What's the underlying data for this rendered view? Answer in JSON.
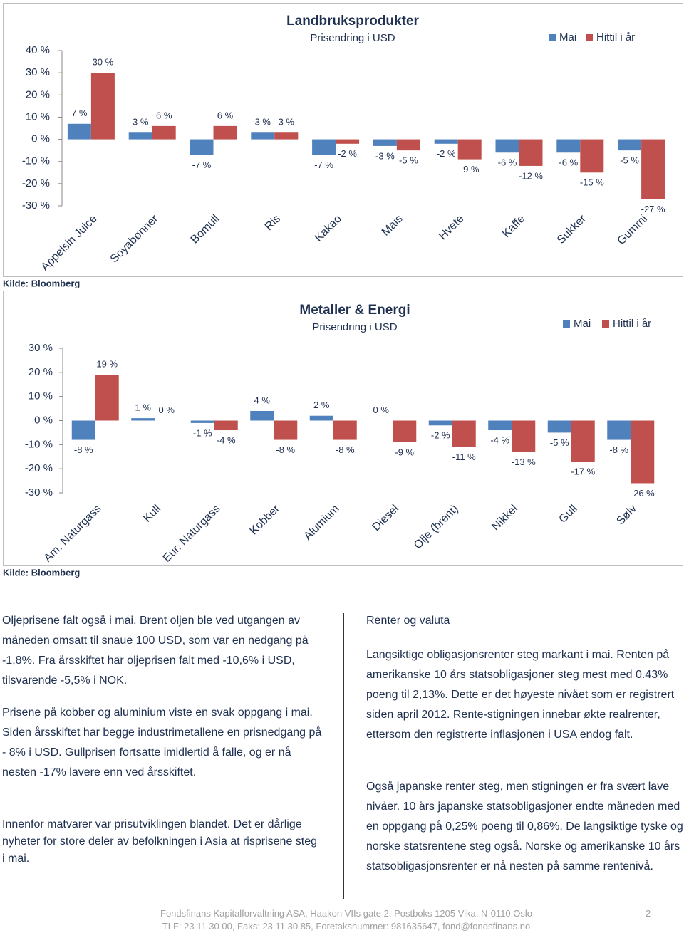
{
  "chart_data": [
    {
      "type": "bar",
      "title": "Landbruksprodukter",
      "subtitle": "Prisendring i USD",
      "categories": [
        "Appelsin Juice",
        "Soyabønner",
        "Bomull",
        "Ris",
        "Kakao",
        "Mais",
        "Hvete",
        "Kaffe",
        "Sukker",
        "Gummi"
      ],
      "series": [
        {
          "name": "Mai",
          "color": "#4f81bd",
          "values": [
            7,
            3,
            -7,
            3,
            -7,
            -3,
            -2,
            -6,
            -6,
            -5
          ],
          "value_labels": [
            "7 %",
            "3 %",
            "-7 %",
            "3 %",
            "-7 %",
            "-3 %",
            "-2 %",
            "-6 %",
            "-6 %",
            "-5 %"
          ]
        },
        {
          "name": "Hittil i år",
          "color": "#c0504d",
          "values": [
            30,
            6,
            6,
            3,
            -2,
            -5,
            -9,
            -12,
            -15,
            -27
          ],
          "value_labels": [
            "30 %",
            "6 %",
            "6 %",
            "3 %",
            "-2 %",
            "-5 %",
            "-9 %",
            "-12 %",
            "-15 %",
            "-27 %"
          ]
        }
      ],
      "ylim": [
        -30,
        40
      ],
      "yticks": [
        {
          "value": -30,
          "label": "-30 %"
        },
        {
          "value": -20,
          "label": "-20 %"
        },
        {
          "value": -10,
          "label": "-10 %"
        },
        {
          "value": 0,
          "label": "0 %"
        },
        {
          "value": 10,
          "label": "10 %"
        },
        {
          "value": 20,
          "label": "20 %"
        },
        {
          "value": 30,
          "label": "30 %"
        },
        {
          "value": 40,
          "label": "40 %"
        }
      ],
      "grid": false,
      "legend": "top-right",
      "source": "Kilde: Bloomberg"
    },
    {
      "type": "bar",
      "title": "Metaller & Energi",
      "subtitle": "Prisendring i USD",
      "categories": [
        "Am. Naturgass",
        "Kull",
        "Eur. Naturgass",
        "Kobber",
        "Alumium",
        "Diesel",
        "Olje (brent)",
        "Nikkel",
        "Gull",
        "Sølv"
      ],
      "series": [
        {
          "name": "Mai",
          "color": "#4f81bd",
          "values": [
            -8,
            1,
            -1,
            4,
            2,
            0,
            -2,
            -4,
            -5,
            -8
          ],
          "value_labels": [
            "-8 %",
            "1 %",
            "-1 %",
            "4 %",
            "2 %",
            "0 %",
            "-2 %",
            "-4 %",
            "-5 %",
            "-8 %"
          ]
        },
        {
          "name": "Hittil i år",
          "color": "#c0504d",
          "values": [
            19,
            0,
            -4,
            -8,
            -8,
            -9,
            -11,
            -13,
            -17,
            -26
          ],
          "value_labels": [
            "19 %",
            "0 %",
            "-4 %",
            "-8 %",
            "-8 %",
            "-9 %",
            "-11 %",
            "-13 %",
            "-17 %",
            "-26 %"
          ]
        }
      ],
      "ylim": [
        -30,
        30
      ],
      "yticks": [
        {
          "value": -30,
          "label": "-30 %"
        },
        {
          "value": -20,
          "label": "-20 %"
        },
        {
          "value": -10,
          "label": "-10 %"
        },
        {
          "value": 0,
          "label": "0 %"
        },
        {
          "value": 10,
          "label": "10 %"
        },
        {
          "value": 20,
          "label": "20 %"
        },
        {
          "value": 30,
          "label": "30 %"
        }
      ],
      "grid": false,
      "legend": "top-right",
      "source": "Kilde: Bloomberg"
    }
  ],
  "left_column": {
    "paragraphs": [
      "Oljeprisene falt også i mai. Brent oljen ble ved utgangen av måneden omsatt til snaue 100 USD, som var en nedgang på -1,8%. Fra årsskiftet har oljeprisen falt med -10,6% i USD, tilsvarende -5,5% i NOK.",
      "Prisene på kobber og aluminium viste en svak oppgang i mai. Siden årsskiftet har begge industrimetallene en prisnedgang på - 8% i USD. Gullprisen fortsatte imidlertid å falle, og er nå nesten -17% lavere enn ved årsskiftet.",
      "Innenfor matvarer var prisutviklingen blandet. Det er dårlige nyheter for store deler av befolkningen i Asia at risprisene steg i mai."
    ]
  },
  "right_column": {
    "heading": "Renter og valuta",
    "paragraphs": [
      "Langsiktige obligasjonsrenter steg markant i mai. Renten på amerikanske 10 års statsobligasjoner steg mest med 0.43% poeng til 2,13%. Dette er det høyeste nivået som er registrert siden april 2012. Rente-stigningen innebar økte realrenter, ettersom den registrerte inflasjonen i USA endog falt.",
      "Også japanske renter steg, men stigningen er fra svært lave nivåer. 10 års japanske statsobligasjoner endte måneden med en oppgang på 0,25% poeng til 0,86%. De langsiktige tyske og norske statsrentene steg også. Norske og amerikanske 10 års statsobligasjonsrenter er nå nesten på samme rentenivå."
    ]
  },
  "footer": {
    "lines": [
      "Fondsfinans Kapitalforvaltning ASA, Haakon VIIs gate 2, Postboks 1205 Vika, N-0110 Oslo",
      "TLF: 23 11 30 00, Faks: 23 11 30 85, Foretaksnummer: 981635647, fond@fondsfinans.no"
    ],
    "page_number": 2
  }
}
